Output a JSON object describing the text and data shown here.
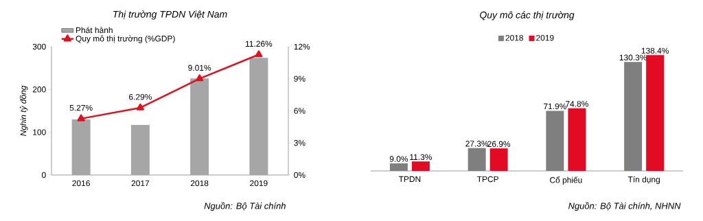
{
  "chart_data": [
    {
      "type": "bar",
      "title": "Thị trường TPDN Việt Nam",
      "ylabel": "Nghin tỷ đồng",
      "categories": [
        "2016",
        "2017",
        "2018",
        "2019"
      ],
      "series": [
        {
          "name": "Phát hành",
          "type": "bar",
          "color": "#a6a6a6",
          "values": [
            130,
            117,
            226,
            274
          ]
        },
        {
          "name": "Quy mô thị trường (%GDP)",
          "type": "line",
          "axis": "y2",
          "color": "#e0101e",
          "values": [
            5.27,
            6.29,
            9.01,
            11.26
          ],
          "value_labels": [
            "5.27%",
            "6.29%",
            "9.01%",
            "11.26%"
          ]
        }
      ],
      "ylim": [
        0,
        300
      ],
      "yticks": [
        0,
        100,
        200,
        300
      ],
      "y2lim": [
        0,
        12
      ],
      "y2ticks": [
        {
          "value": 0,
          "label": "0%"
        },
        {
          "value": 3,
          "label": "3%"
        },
        {
          "value": 6,
          "label": "6%"
        },
        {
          "value": 9,
          "label": "9%"
        },
        {
          "value": 12,
          "label": "12%"
        }
      ],
      "marker": "triangle",
      "legend": "top left",
      "annotations": [
        "Nguồn: Bộ Tài chính"
      ]
    },
    {
      "type": "bar",
      "title": "Quy mô các thị trường",
      "categories": [
        "TPDN",
        "TPCP",
        "Cổ phiếu",
        "Tín dụng"
      ],
      "series": [
        {
          "name": "2018",
          "color": "#7f7f7f",
          "values": [
            9.0,
            27.3,
            71.9,
            130.3
          ],
          "value_labels": [
            "9.0%",
            "27.3%",
            "71.9%",
            "130.3%"
          ]
        },
        {
          "name": "2019",
          "color": "#e30b24",
          "values": [
            11.3,
            26.9,
            74.8,
            138.4
          ],
          "value_labels": [
            "11.3%",
            "26.9%",
            "74.8%",
            "138.4%"
          ]
        }
      ],
      "tick_labels": "x",
      "legend": "top",
      "annotations": [
        "Nguồn: Bộ Tài chính, NHNN"
      ]
    }
  ]
}
